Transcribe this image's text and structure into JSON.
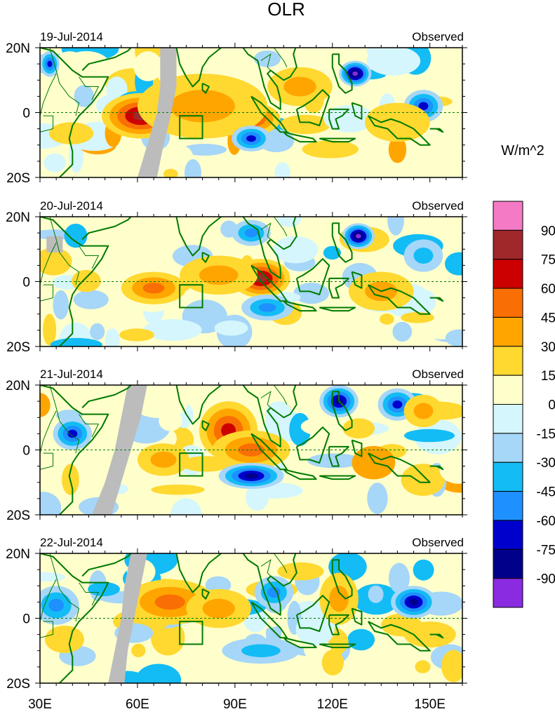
{
  "chart_data": {
    "type": "heatmap",
    "title": "OLR",
    "units": "W/m^2",
    "panels": [
      {
        "date": "19-Jul-2014",
        "label": "Observed",
        "features": [
          {
            "lon": 61,
            "lat": -1,
            "value": 75,
            "rx": 12,
            "ry": 7
          },
          {
            "lon": 95,
            "lat": -2,
            "value": 60,
            "rx": 9,
            "ry": 5
          },
          {
            "lon": 80,
            "lat": 2,
            "value": 40,
            "rx": 20,
            "ry": 10
          },
          {
            "lon": 110,
            "lat": 8,
            "value": 30,
            "rx": 10,
            "ry": 6
          },
          {
            "lon": 127,
            "lat": 12,
            "value": -90,
            "rx": 5,
            "ry": 4
          },
          {
            "lon": 95,
            "lat": -8,
            "value": -60,
            "rx": 6,
            "ry": 4
          },
          {
            "lon": 148,
            "lat": 2,
            "value": -60,
            "rx": 6,
            "ry": 5
          },
          {
            "lon": 33,
            "lat": 15,
            "value": -60,
            "rx": 3,
            "ry": 4
          },
          {
            "lon": 140,
            "lat": -3,
            "value": 20,
            "rx": 10,
            "ry": 6
          }
        ]
      },
      {
        "date": "20-Jul-2014",
        "label": "Observed",
        "features": [
          {
            "lon": 98,
            "lat": 1,
            "value": 75,
            "rx": 9,
            "ry": 6
          },
          {
            "lon": 65,
            "lat": -2,
            "value": 50,
            "rx": 10,
            "ry": 5
          },
          {
            "lon": 85,
            "lat": 2,
            "value": 40,
            "rx": 12,
            "ry": 6
          },
          {
            "lon": 128,
            "lat": 14,
            "value": -90,
            "rx": 5,
            "ry": 4
          },
          {
            "lon": 100,
            "lat": -8,
            "value": -45,
            "rx": 8,
            "ry": 4
          },
          {
            "lon": 135,
            "lat": -3,
            "value": 30,
            "rx": 10,
            "ry": 6
          },
          {
            "lon": 95,
            "lat": 15,
            "value": -45,
            "rx": 6,
            "ry": 4
          },
          {
            "lon": 148,
            "lat": 8,
            "value": -40,
            "rx": 6,
            "ry": 5
          }
        ]
      },
      {
        "date": "21-Jul-2014",
        "label": "Observed",
        "features": [
          {
            "lon": 88,
            "lat": 6,
            "value": 70,
            "rx": 9,
            "ry": 9
          },
          {
            "lon": 95,
            "lat": 0,
            "value": 45,
            "rx": 12,
            "ry": 6
          },
          {
            "lon": 95,
            "lat": -8,
            "value": -75,
            "rx": 10,
            "ry": 4
          },
          {
            "lon": 122,
            "lat": 15,
            "value": -75,
            "rx": 6,
            "ry": 5
          },
          {
            "lon": 40,
            "lat": 5,
            "value": -60,
            "rx": 6,
            "ry": 5
          },
          {
            "lon": 140,
            "lat": 14,
            "value": -60,
            "rx": 6,
            "ry": 5
          },
          {
            "lon": 148,
            "lat": 12,
            "value": 30,
            "rx": 6,
            "ry": 5
          },
          {
            "lon": 68,
            "lat": -3,
            "value": 30,
            "rx": 8,
            "ry": 5
          }
        ]
      },
      {
        "date": "22-Jul-2014",
        "label": "Observed",
        "features": [
          {
            "lon": 70,
            "lat": 5,
            "value": 50,
            "rx": 14,
            "ry": 7
          },
          {
            "lon": 85,
            "lat": 3,
            "value": 40,
            "rx": 10,
            "ry": 6
          },
          {
            "lon": 122,
            "lat": 6,
            "value": 40,
            "rx": 6,
            "ry": 8
          },
          {
            "lon": 145,
            "lat": 5,
            "value": -75,
            "rx": 7,
            "ry": 5
          },
          {
            "lon": 35,
            "lat": 4,
            "value": -45,
            "rx": 7,
            "ry": 6
          },
          {
            "lon": 102,
            "lat": 8,
            "value": -45,
            "rx": 6,
            "ry": 5
          },
          {
            "lon": 98,
            "lat": -10,
            "value": -30,
            "rx": 12,
            "ry": 4
          },
          {
            "lon": 150,
            "lat": -5,
            "value": 20,
            "rx": 8,
            "ry": 4
          }
        ]
      }
    ],
    "x": {
      "min": 30,
      "max": 160,
      "ticks": [
        30,
        60,
        90,
        120,
        150
      ],
      "tick_labels": [
        "30E",
        "60E",
        "90E",
        "120E",
        "150E"
      ]
    },
    "y": {
      "min": -20,
      "max": 20,
      "ticks": [
        20,
        0,
        -20
      ],
      "tick_labels": [
        "20N",
        "0",
        "20S"
      ]
    },
    "colorbar": {
      "labels": [
        "90",
        "75",
        "60",
        "45",
        "30",
        "15",
        "0",
        "-15",
        "-30",
        "-45",
        "-60",
        "-75",
        "-90"
      ],
      "bin_lower_bounds": [
        90,
        75,
        60,
        45,
        30,
        15,
        0,
        -15,
        -30,
        -45,
        -60,
        -75,
        -90,
        -105
      ],
      "colors": [
        "#f57ac6",
        "#a0282a",
        "#cc0000",
        "#f96f04",
        "#ffa500",
        "#ffd830",
        "#ffffcc",
        "#d5f6fc",
        "#a6d6f8",
        "#13bcf5",
        "#1e90ff",
        "#0000cd",
        "#00008b",
        "#8a2be2"
      ]
    },
    "box": {
      "lon_min": 73,
      "lon_max": 80,
      "lat_min": -8,
      "lat_max": -1
    },
    "colors": {
      "coast": "#007a00",
      "missing": "#bcbcbc",
      "equator": "#007a00"
    }
  }
}
